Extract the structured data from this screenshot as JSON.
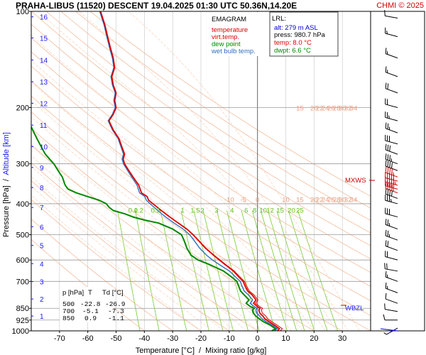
{
  "header": {
    "title": "PRAHA-LIBUS (11520)   DESCENT   19.04.2025 01:30 UTC  50.36N,14.20E",
    "copyright": "CHMI © 2025"
  },
  "chart_data": {
    "type": "line",
    "subtype": "emagram",
    "xlim": [
      -80,
      40
    ],
    "ylim_hpa": [
      1000,
      100
    ],
    "log_pressure_axis": true,
    "x_ticks": [
      -70,
      -60,
      -50,
      -40,
      -30,
      -20,
      -10,
      0,
      10,
      20,
      30
    ],
    "x_tick_labels": [
      "-70",
      "-60",
      "-50",
      "-40",
      "-30",
      "-20",
      "-10",
      "0",
      "10",
      "20",
      "30"
    ],
    "y_ticks": [
      100,
      200,
      300,
      400,
      500,
      600,
      700,
      850,
      925,
      1000
    ],
    "y_tick_labels": [
      "100",
      "200",
      "300",
      "400",
      "500",
      "600",
      "700",
      "850",
      "925",
      "1000"
    ],
    "altitude_ticks": [
      {
        "label": "1",
        "hpa": 899
      },
      {
        "label": "2",
        "hpa": 795
      },
      {
        "label": "3",
        "hpa": 701
      },
      {
        "label": "4",
        "hpa": 616
      },
      {
        "label": "5",
        "hpa": 540
      },
      {
        "label": "6",
        "hpa": 472
      },
      {
        "label": "7",
        "hpa": 411
      },
      {
        "label": "8",
        "hpa": 356
      },
      {
        "label": "9",
        "hpa": 308
      },
      {
        "label": "10",
        "hpa": 265
      },
      {
        "label": "11",
        "hpa": 227
      },
      {
        "label": "12",
        "hpa": 194
      },
      {
        "label": "13",
        "hpa": 166
      },
      {
        "label": "14",
        "hpa": 142
      },
      {
        "label": "15",
        "hpa": 121
      },
      {
        "label": "16",
        "hpa": 104
      }
    ],
    "ylabel_parts": [
      "Pressure [hPa]",
      "/",
      "Altitude [km]"
    ],
    "xlabel_parts": [
      "Temperature [°C]",
      "/",
      "Mixing ratio [g/kg]"
    ],
    "legend": {
      "heading": "EMAGRAM",
      "items": [
        {
          "name": "temperature",
          "color": "#e00000"
        },
        {
          "name": "virt.temp.",
          "color": "#e00000"
        },
        {
          "name": "dew point",
          "color": "#008800"
        },
        {
          "name": "wet bulb temp.",
          "color": "#3070c0"
        }
      ]
    },
    "lrl_box": {
      "heading": "LRL:",
      "rows": [
        {
          "text": "alt: 279 m ASL",
          "color": "#0000cc"
        },
        {
          "text": "press: 980.7 hPa",
          "color": "#000000"
        },
        {
          "text": "temp: 8.0 °C",
          "color": "#e00000"
        },
        {
          "text": "dwpt: 6.6 °C",
          "color": "#008800"
        }
      ]
    },
    "level_table": {
      "header": [
        "p [hPa]",
        "T",
        "Td [°C]"
      ],
      "rows": [
        [
          "500",
          "-22.8",
          "-26.9"
        ],
        [
          "700",
          "-5.1",
          "-7.3"
        ],
        [
          "850",
          "0.9",
          "-1.1"
        ]
      ]
    },
    "adiabat_labels_upper": {
      "hpa": 200,
      "t": [
        15,
        20,
        22,
        24,
        26,
        28,
        30,
        32,
        34
      ],
      "labels": [
        "15",
        "20",
        "22",
        "24",
        "26",
        "28",
        "30",
        "32",
        "34"
      ]
    },
    "adiabat_labels_lower": {
      "hpa": 387,
      "t": [
        -10,
        -5,
        0,
        10,
        15,
        20,
        22,
        24,
        26,
        28,
        30,
        32,
        34
      ],
      "labels": [
        "-10",
        "-5",
        "0",
        "10",
        "15",
        "20",
        "22",
        "24",
        "26",
        "28",
        "30",
        "32",
        "34"
      ]
    },
    "mixing_ratio_labels": {
      "hpa": 418,
      "t": [
        -44,
        -42,
        -36,
        -26.5,
        -22,
        -19.5,
        -14.5,
        -9,
        -4,
        -1,
        2,
        4.5,
        8,
        12,
        15
      ],
      "labels": [
        "0.1",
        "0.2",
        "0.5",
        "1",
        "1.5",
        "2",
        "3",
        "4",
        "6",
        "8",
        "10",
        "12",
        "15",
        "20",
        "25"
      ]
    },
    "temperature": {
      "p": [
        1000,
        985,
        960,
        935,
        915,
        900,
        880,
        860,
        850,
        840,
        820,
        800,
        770,
        750,
        720,
        700,
        680,
        650,
        620,
        600,
        580,
        550,
        520,
        500,
        480,
        460,
        440,
        420,
        400,
        390,
        380,
        370,
        350,
        330,
        310,
        300,
        290,
        280,
        265,
        250,
        235,
        220,
        210,
        200,
        190,
        180,
        170,
        160,
        150,
        140,
        130,
        120,
        110,
        100
      ],
      "t": [
        7,
        7.8,
        6,
        4,
        2.5,
        2,
        0.8,
        0.5,
        0.9,
        0,
        -1.4,
        -0.5,
        -2,
        -3.5,
        -4.5,
        -5.1,
        -6.5,
        -8.5,
        -11.5,
        -13.5,
        -15.5,
        -18.5,
        -21,
        -22.8,
        -25,
        -28,
        -31,
        -34,
        -37,
        -38.5,
        -39,
        -41,
        -42,
        -44,
        -46,
        -47,
        -47.5,
        -47,
        -48,
        -49,
        -51,
        -52.5,
        -51,
        -50,
        -50.5,
        -50,
        -51,
        -51.5,
        -50.5,
        -51,
        -52,
        -53,
        -54,
        -55.5
      ]
    },
    "virtual_temperature": {
      "p": [
        1000,
        985,
        960,
        935,
        915,
        900,
        880,
        860,
        850,
        840,
        820,
        800,
        770,
        750,
        720,
        700,
        680,
        650,
        620,
        600,
        580,
        550,
        520,
        500,
        480,
        460
      ],
      "t": [
        8,
        8.8,
        7,
        5,
        3.5,
        3,
        1.7,
        1.4,
        1.8,
        0.8,
        -0.7,
        0.2,
        -1.4,
        -2.9,
        -4,
        -4.6,
        -6.1,
        -8.2,
        -11.2,
        -13.2,
        -15.3,
        -18.3,
        -20.8,
        -22.7,
        -24.9,
        -27.9
      ]
    },
    "dew_point": {
      "p": [
        1000,
        985,
        960,
        935,
        915,
        900,
        880,
        860,
        850,
        840,
        820,
        800,
        770,
        750,
        720,
        700,
        680,
        650,
        620,
        600,
        580,
        550,
        520,
        500,
        480,
        460,
        450,
        440,
        430,
        420,
        410,
        400,
        390,
        380,
        370,
        360,
        350,
        340,
        330,
        320,
        310,
        300,
        290,
        280,
        270,
        260,
        250,
        240,
        230,
        220,
        210,
        205
      ],
      "t": [
        5,
        6.4,
        4.5,
        2,
        0.5,
        -0.5,
        -1.5,
        -1.8,
        -1.1,
        -2.5,
        -4,
        -3,
        -4.8,
        -6,
        -6.8,
        -7.3,
        -9,
        -12,
        -17,
        -21,
        -23.5,
        -25,
        -26,
        -26.9,
        -30,
        -35,
        -40,
        -44,
        -47,
        -51,
        -52.5,
        -53.5,
        -56,
        -60,
        -64,
        -67,
        -68,
        -68.5,
        -69,
        -70,
        -71,
        -72,
        -73.5,
        -75,
        -76,
        -77,
        -78,
        -79,
        -80,
        -81,
        -82,
        -83
      ]
    },
    "wet_bulb": {
      "p": [
        1000,
        985,
        960,
        935,
        915,
        900,
        880,
        860,
        850,
        840,
        820,
        800,
        770,
        750,
        720,
        700,
        680,
        650,
        620,
        600,
        580,
        550,
        520,
        500,
        480,
        460,
        440,
        420,
        400,
        390,
        380,
        370,
        350,
        330,
        310,
        300,
        290,
        280,
        265,
        250,
        235,
        220,
        210,
        200,
        190,
        180,
        170,
        160,
        150,
        140,
        130,
        120,
        110,
        100
      ],
      "t": [
        6,
        7,
        5.2,
        3,
        1.5,
        0.8,
        -0.3,
        -0.6,
        -0.1,
        -1.1,
        -2.6,
        -1.7,
        -3.3,
        -4.7,
        -5.6,
        -6.1,
        -7.6,
        -9.9,
        -13.5,
        -15.9,
        -18,
        -20.5,
        -22.5,
        -24,
        -26.3,
        -29.5,
        -32.5,
        -35.3,
        -38,
        -39.3,
        -39.8,
        -41.7,
        -42.6,
        -44.5,
        -46.4,
        -47.4,
        -47.9,
        -47.4,
        -48.3,
        -49.3,
        -51.3,
        -52.8,
        -51.3,
        -50.3,
        -50.8,
        -50.3,
        -51.3,
        -51.8,
        -50.8,
        -51.3,
        -52.3,
        -53.3,
        -54.3,
        -55.8
      ]
    },
    "level_markers": [
      {
        "label": "MXWS",
        "hpa": 345,
        "color": "#d00000"
      },
      {
        "label": "WBZL",
        "hpa": 850,
        "color": "#1a1aff"
      }
    ],
    "wind_barbs": {
      "hpa": [
        980,
        925,
        870,
        820,
        760,
        700,
        650,
        600,
        560,
        520,
        480,
        440,
        400,
        385,
        370,
        360,
        350,
        340,
        330,
        315,
        300,
        280,
        260,
        240,
        220,
        200,
        180,
        160,
        140,
        120,
        105
      ],
      "speed_kt": [
        5,
        10,
        10,
        10,
        15,
        15,
        20,
        20,
        20,
        25,
        25,
        30,
        35,
        40,
        45,
        50,
        55,
        50,
        45,
        40,
        35,
        30,
        30,
        25,
        25,
        20,
        20,
        15,
        15,
        15,
        10
      ],
      "direction_deg": [
        240,
        270,
        280,
        290,
        290,
        290,
        280,
        285,
        290,
        290,
        290,
        285,
        285,
        290,
        290,
        285,
        285,
        285,
        290,
        290,
        290,
        290,
        285,
        290,
        285,
        285,
        290,
        290,
        290,
        285,
        280
      ]
    },
    "colors": {
      "temperature": "#e00000",
      "dew_point": "#008800",
      "wet_bulb": "#3070c0",
      "dry_adiabat": "#f2b490",
      "moist_adiabat": "#f8d2bc",
      "mixing_ratio": "#74cc2e",
      "isobar": "#999999",
      "isotherm": "#bbbbbb",
      "altitude": "#1a1aff"
    }
  }
}
